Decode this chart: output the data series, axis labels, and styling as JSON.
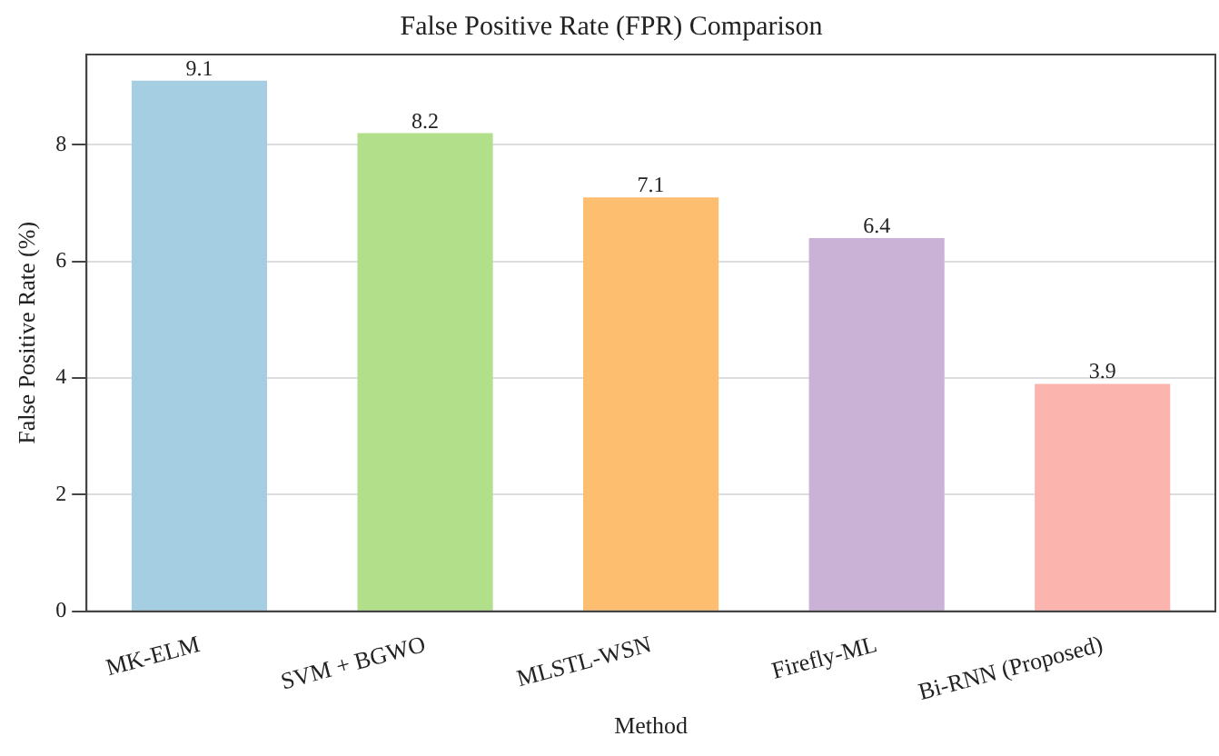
{
  "chart_data": {
    "type": "bar",
    "title": "False Positive Rate (FPR) Comparison",
    "xlabel": "Method",
    "ylabel": "False Positive Rate (%)",
    "categories": [
      "MK-ELM",
      "SVM + BGWO",
      "MLSTL-WSN",
      "Firefly-ML",
      "Bi-RNN (Proposed)"
    ],
    "values": [
      9.1,
      8.2,
      7.1,
      6.4,
      3.9
    ],
    "colors": [
      "#a6cee3",
      "#b2df8a",
      "#fdbf6f",
      "#cab2d6",
      "#fbb4ae"
    ],
    "ylim": [
      0,
      9.55
    ],
    "yticks": [
      0,
      2,
      4,
      6,
      8
    ],
    "grid": "y",
    "data_labels": true,
    "legend": false
  }
}
